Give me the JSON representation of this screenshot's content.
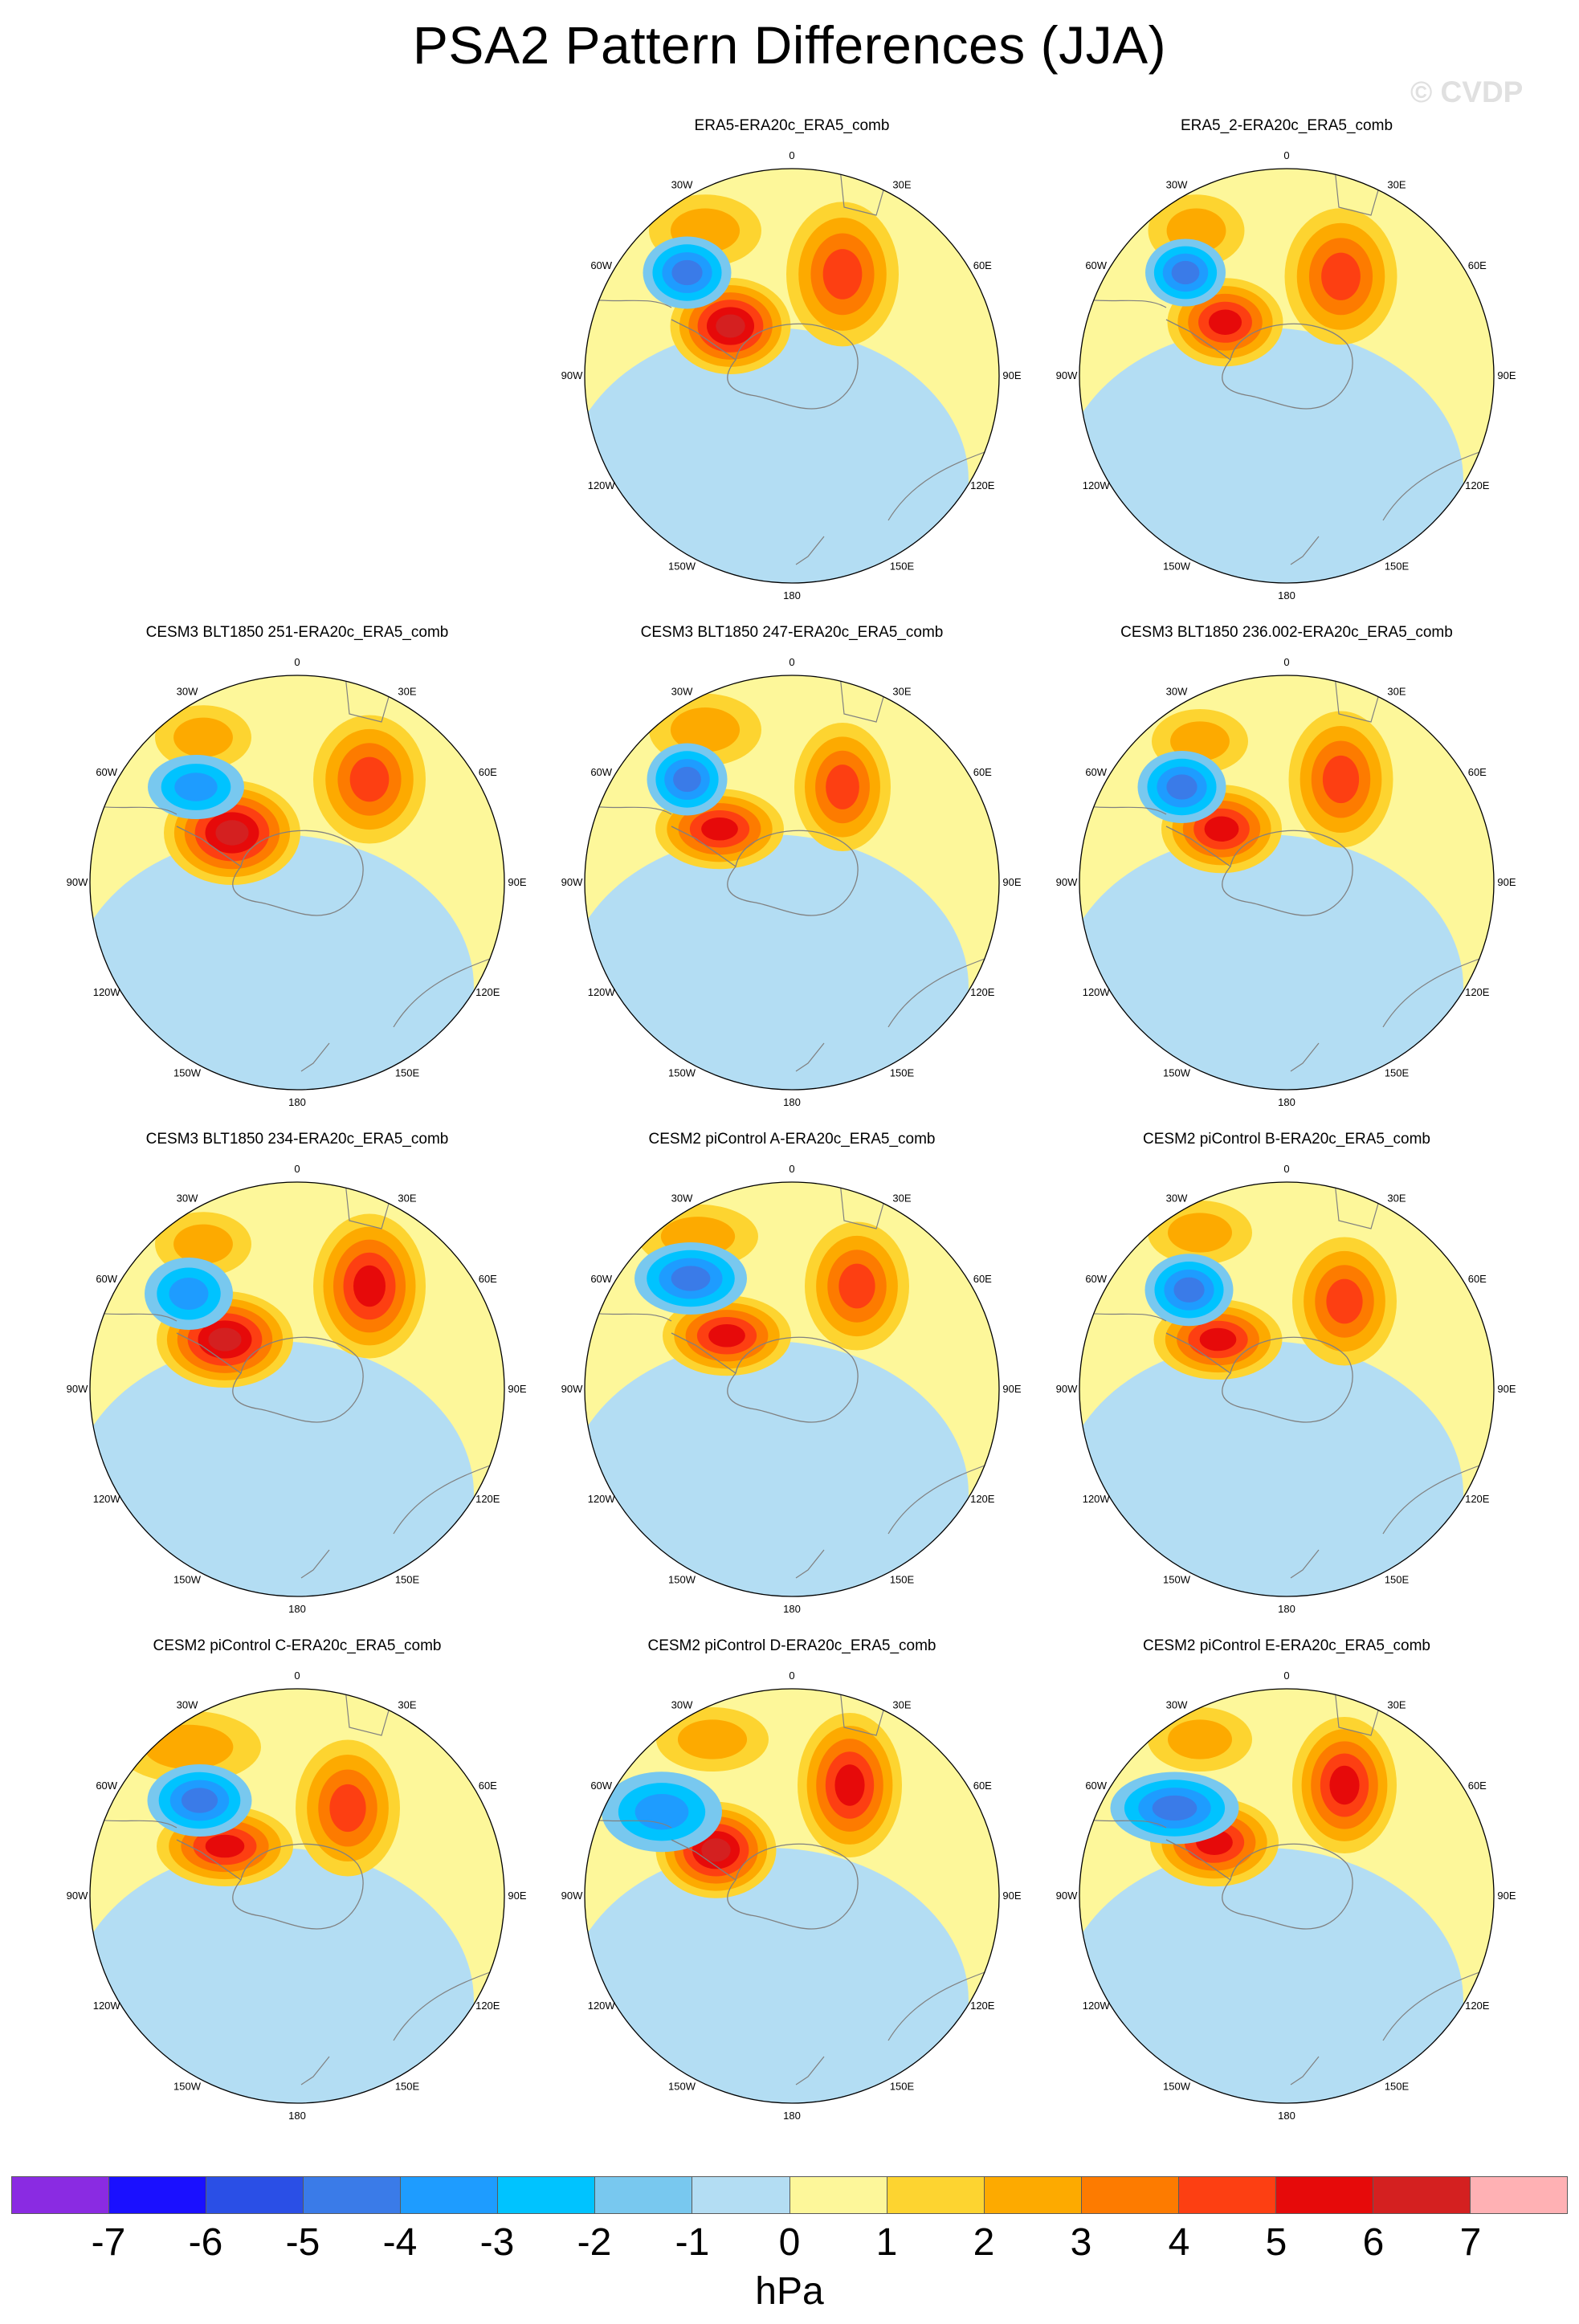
{
  "title": "PSA2 Pattern Differences (JJA)",
  "watermark": "© CVDP",
  "panels": [
    {
      "title": "ERA5-ERA20c_ERA5_comb"
    },
    {
      "title": "ERA5_2-ERA20c_ERA5_comb"
    },
    {
      "title": "CESM3 BLT1850 251-ERA20c_ERA5_comb"
    },
    {
      "title": "CESM3 BLT1850 247-ERA20c_ERA5_comb"
    },
    {
      "title": "CESM3 BLT1850 236.002-ERA20c_ERA5_comb"
    },
    {
      "title": "CESM3 BLT1850 234-ERA20c_ERA5_comb"
    },
    {
      "title": "CESM2 piControl A-ERA20c_ERA5_comb"
    },
    {
      "title": "CESM2 piControl B-ERA20c_ERA5_comb"
    },
    {
      "title": "CESM2 piControl C-ERA20c_ERA5_comb"
    },
    {
      "title": "CESM2 piControl D-ERA20c_ERA5_comb"
    },
    {
      "title": "CESM2 piControl E-ERA20c_ERA5_comb"
    }
  ],
  "longitude_labels": [
    "0",
    "30E",
    "60E",
    "90E",
    "120E",
    "150E",
    "180",
    "150W",
    "120W",
    "90W",
    "60W",
    "30W"
  ],
  "colorbar": {
    "ticks": [
      "-7",
      "-6",
      "-5",
      "-4",
      "-3",
      "-2",
      "-1",
      "0",
      "1",
      "2",
      "3",
      "4",
      "5",
      "6",
      "7"
    ],
    "colors": [
      "#8a2be2",
      "#1a10ff",
      "#2a4fe6",
      "#3a7be8",
      "#1e9cff",
      "#00c3ff",
      "#78c8ef",
      "#b3ddf3",
      "#fdf79a",
      "#fdd430",
      "#fdaa00",
      "#fd7b00",
      "#fd3f12",
      "#e60a0a",
      "#d42020",
      "#ffb1b4"
    ],
    "units": "hPa"
  }
}
